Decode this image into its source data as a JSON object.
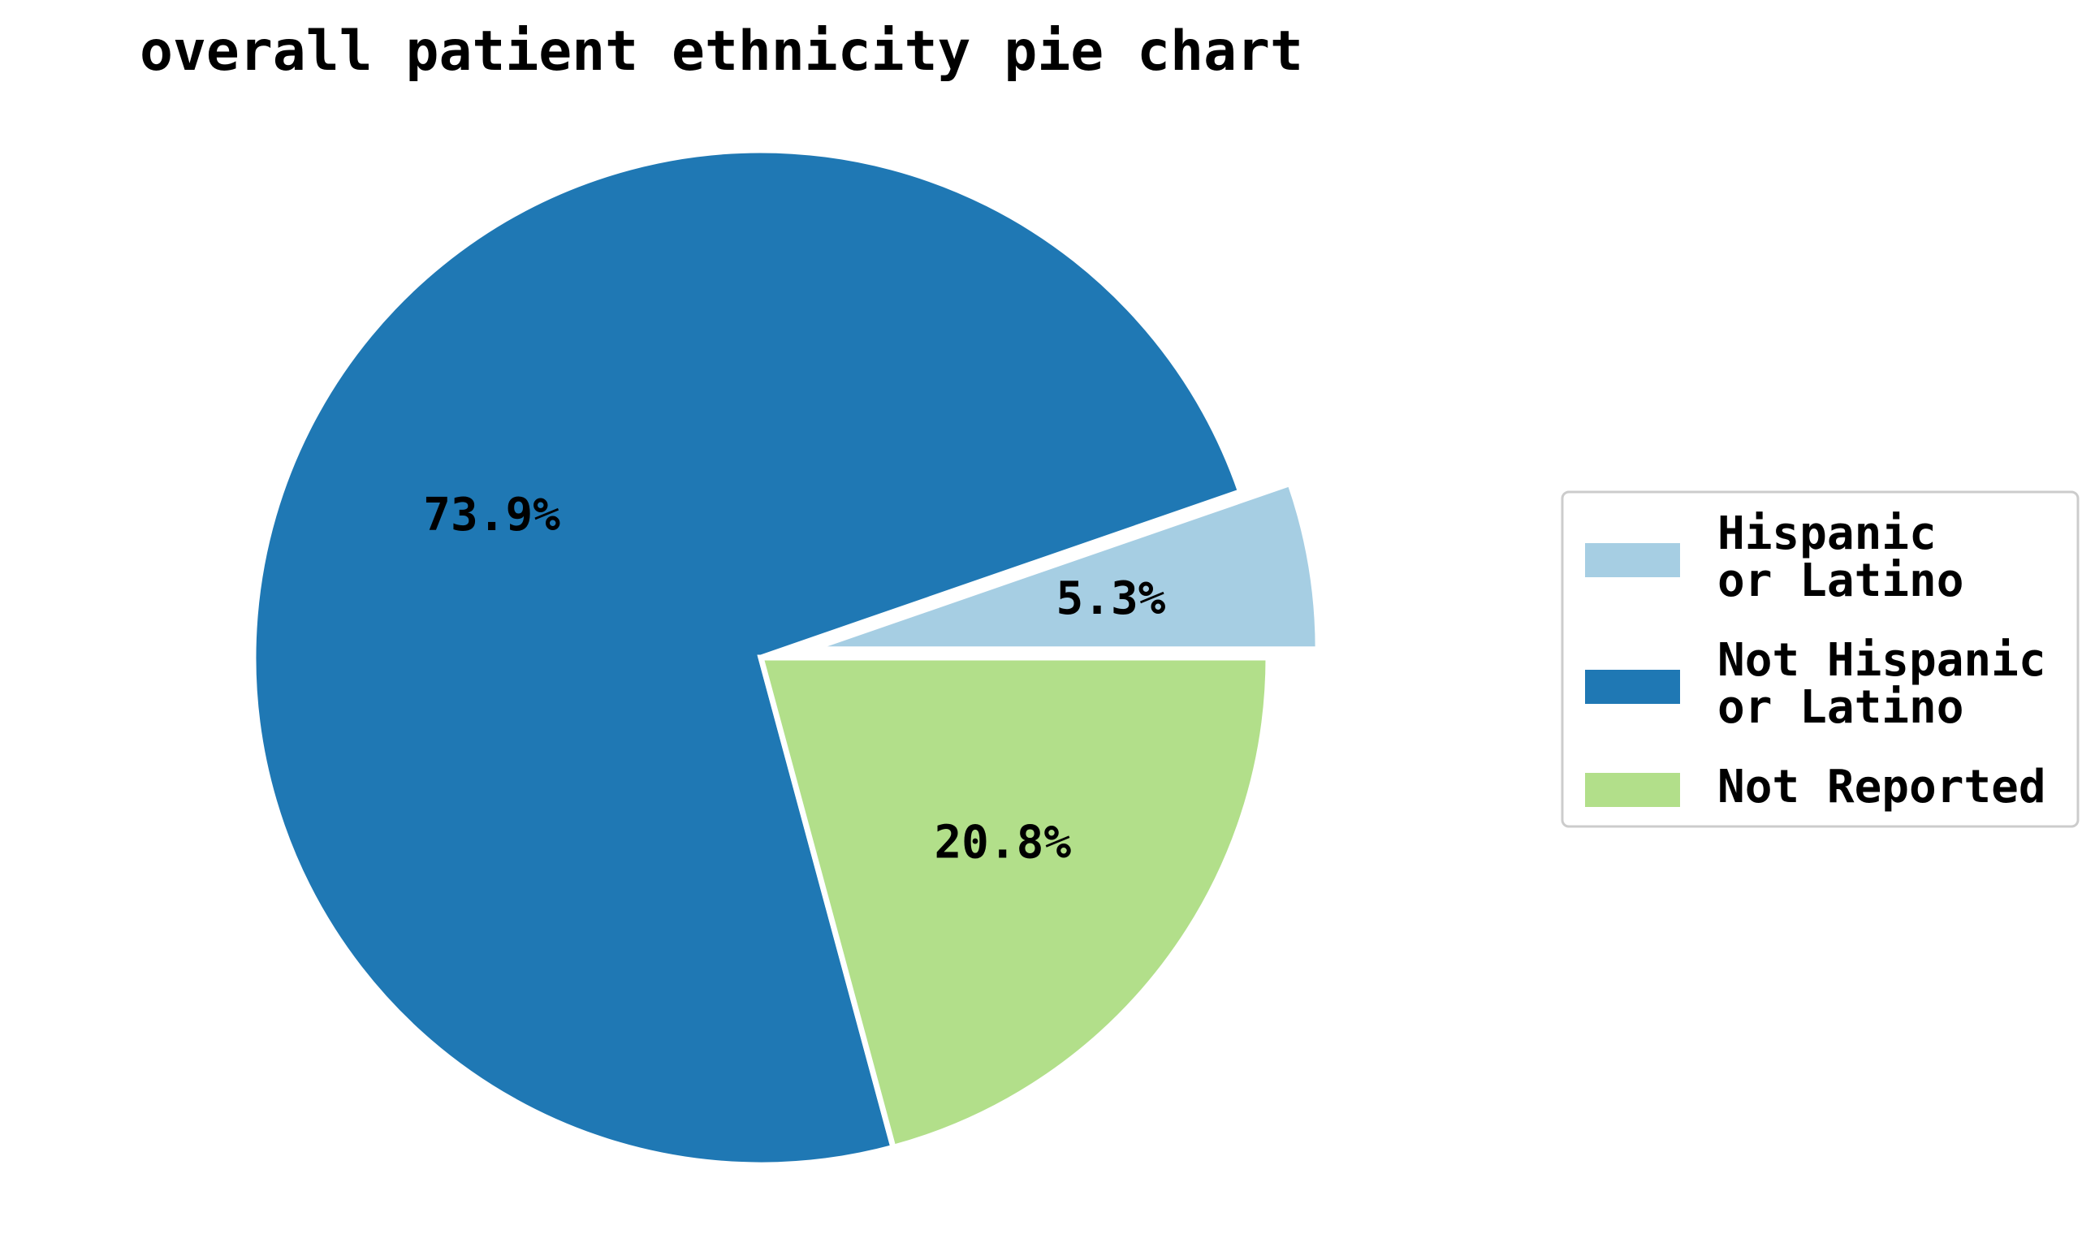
{
  "chart_data": {
    "type": "pie",
    "title": "overall patient ethnicity pie chart",
    "slices": [
      {
        "label": [
          "Hispanic",
          "or Latino"
        ],
        "value": 5.3,
        "pct_label": "5.3%",
        "color": "#a6cee3",
        "exploded": true
      },
      {
        "label": [
          "Not Hispanic",
          "or Latino"
        ],
        "value": 73.9,
        "pct_label": "73.9%",
        "color": "#1f78b4",
        "exploded": false
      },
      {
        "label": [
          "Not Reported"
        ],
        "value": 20.8,
        "pct_label": "20.8%",
        "color": "#b2df8a",
        "exploded": false
      }
    ],
    "start_angle_deg": 0,
    "direction": "counterclockwise",
    "legend_position": "right",
    "slice_edge_color": "#ffffff"
  }
}
